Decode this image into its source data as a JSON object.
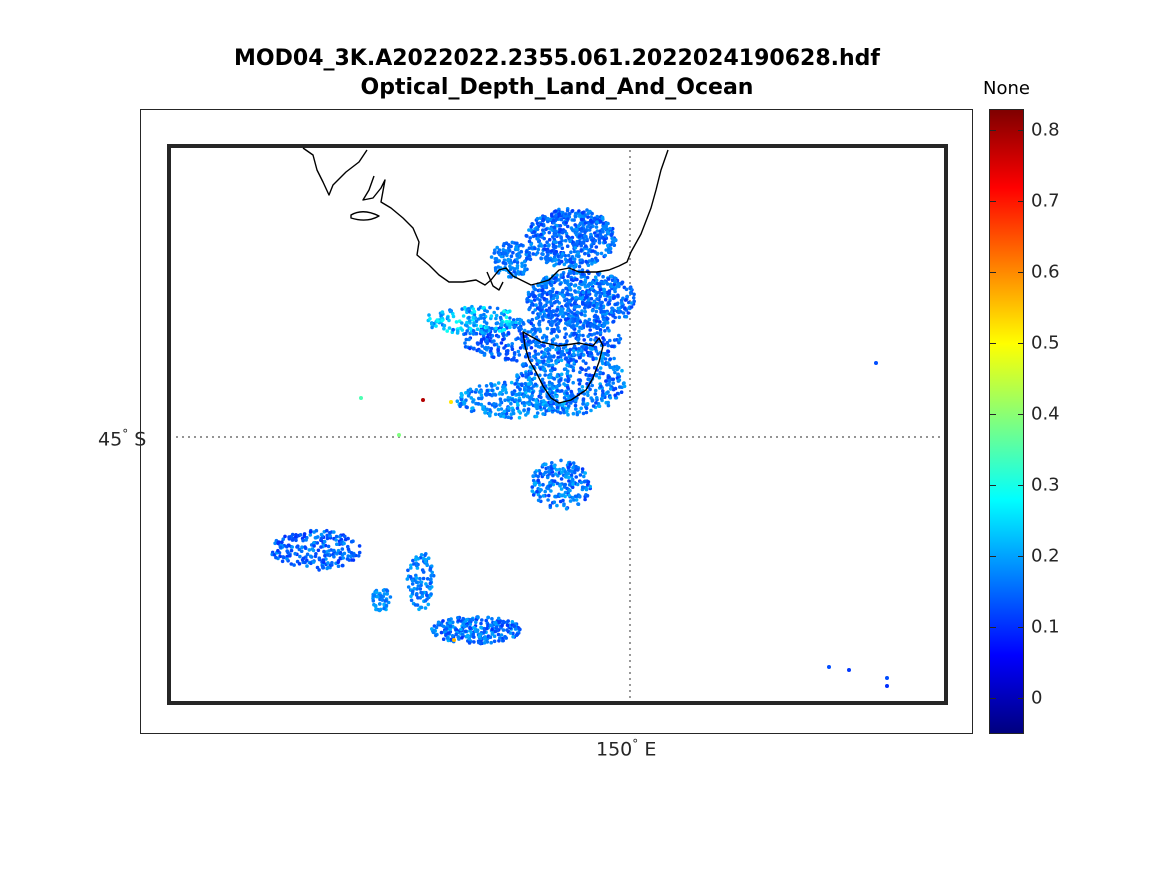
{
  "title": {
    "line1": "MOD04_3K.A2022022.2355.061.2022024190628.hdf",
    "line2": "Optical_Depth_Land_And_Ocean"
  },
  "map": {
    "lat_label": "45",
    "lat_hemisphere": "S",
    "lon_label": "150",
    "lon_hemisphere": "E",
    "degree_symbol": "°",
    "graticule_style": "dotted",
    "coastline_color": "#000000"
  },
  "colorbar": {
    "title": "None",
    "colormap": "jet",
    "range": [
      -0.05,
      0.83
    ],
    "ticks": [
      "0",
      "0.1",
      "0.2",
      "0.3",
      "0.4",
      "0.5",
      "0.6",
      "0.7",
      "0.8"
    ],
    "tick_values": [
      0,
      0.1,
      0.2,
      0.3,
      0.4,
      0.5,
      0.6,
      0.7,
      0.8
    ]
  }
}
